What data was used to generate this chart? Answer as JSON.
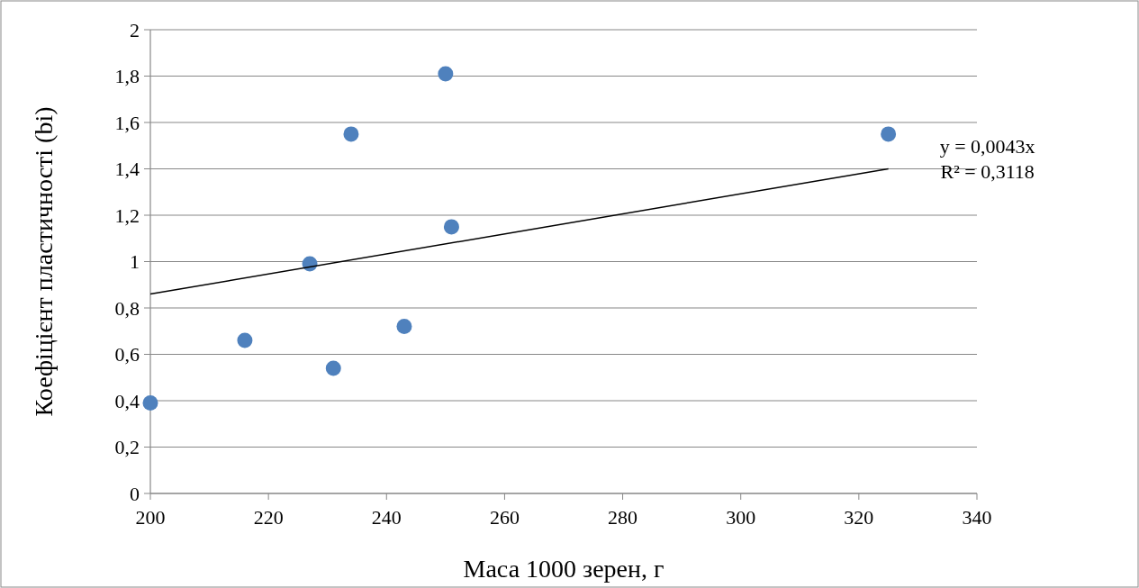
{
  "chart_data": {
    "type": "scatter",
    "xlabel": "Маса 1000 зерен, г",
    "ylabel": "Коефіцієнт пластичності (bi)",
    "xlim": [
      200,
      340
    ],
    "xticks": [
      200,
      220,
      240,
      260,
      280,
      300,
      320,
      340
    ],
    "ylim": [
      0,
      2
    ],
    "yticks": [
      0,
      {
        "value": 0.2,
        "label": "0,2"
      },
      {
        "value": 0.4,
        "label": "0,4"
      },
      {
        "value": 0.6,
        "label": "0,6"
      },
      {
        "value": 0.8,
        "label": "0,8"
      },
      1,
      {
        "value": 1.2,
        "label": "1,2"
      },
      {
        "value": 1.4,
        "label": "1,4"
      },
      {
        "value": 1.6,
        "label": "1,6"
      },
      {
        "value": 1.8,
        "label": "1,8"
      },
      2
    ],
    "grid": "y",
    "series": [
      {
        "color": "#4f81bd",
        "marker": "circle",
        "x": [
          200,
          216,
          227,
          231,
          234,
          243,
          250,
          251,
          325
        ],
        "values": [
          0.39,
          0.66,
          0.99,
          0.54,
          1.55,
          0.72,
          1.81,
          1.15,
          1.55
        ]
      },
      {
        "type": "line",
        "color": "#000000",
        "marker": "none",
        "line_style": "solid",
        "x": [
          200,
          325
        ],
        "values": [
          0.86,
          1.4
        ]
      }
    ],
    "annotations": [
      {
        "text": "y = 0,0043x",
        "x": 325,
        "y": 1.4
      },
      "R² = 0,3118"
    ]
  }
}
